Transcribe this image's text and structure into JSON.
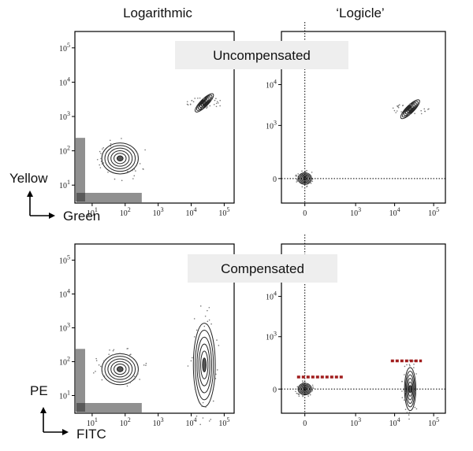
{
  "figure": {
    "columns": [
      {
        "title": "Logarithmic"
      },
      {
        "title": "‘Logicle’"
      }
    ],
    "rows": [
      {
        "banner": "Uncompensated",
        "x_axis_label": "Green",
        "y_axis_label": "Yellow"
      },
      {
        "banner": "Compensated",
        "x_axis_label": "FITC",
        "y_axis_label": "PE"
      }
    ],
    "log_ticks": [
      {
        "base": "10",
        "exp": "1",
        "value": 10
      },
      {
        "base": "10",
        "exp": "2",
        "value": 100
      },
      {
        "base": "10",
        "exp": "3",
        "value": 1000
      },
      {
        "base": "10",
        "exp": "4",
        "value": 10000
      },
      {
        "base": "10",
        "exp": "5",
        "value": 100000
      }
    ],
    "logicle_x_ticks": [
      {
        "label": "0",
        "value": 0
      },
      {
        "base": "10",
        "exp": "3",
        "value": 1000
      },
      {
        "base": "10",
        "exp": "4",
        "value": 10000
      },
      {
        "base": "10",
        "exp": "5",
        "value": 100000
      }
    ],
    "logicle_y_ticks": [
      {
        "label": "0",
        "value": 0
      },
      {
        "base": "10",
        "exp": "3",
        "value": 1000
      },
      {
        "base": "10",
        "exp": "4",
        "value": 10000
      }
    ],
    "colors": {
      "contour": "#222222",
      "banner_bg": "#eeeeee",
      "threshold": "#a11d1d",
      "grid_line": "#000000"
    }
  },
  "chart_data": [
    {
      "type": "scatter",
      "title": "Logarithmic",
      "subtitle": "Uncompensated",
      "xlabel": "Green",
      "ylabel": "Yellow",
      "xscale": "log",
      "yscale": "log",
      "xlim": [
        3,
        200000
      ],
      "ylim": [
        3,
        300000
      ],
      "clusters": [
        {
          "x": 70,
          "y": 60,
          "spread_decades": 0.55
        },
        {
          "x": 3,
          "y": 3,
          "note": "events piled on axes"
        },
        {
          "x": 25000,
          "y": 2500,
          "spread_decades": 0.25
        }
      ]
    },
    {
      "type": "scatter",
      "title": "‘Logicle’",
      "subtitle": "Uncompensated",
      "xlabel": "Green",
      "ylabel": "Yellow",
      "xscale": "logicle",
      "yscale": "logicle",
      "xlim": [
        -300,
        200000
      ],
      "ylim": [
        -300,
        200000
      ],
      "clusters": [
        {
          "x": 0,
          "y": 0,
          "spread_decades": 0.2
        },
        {
          "x": 25000,
          "y": 2500,
          "spread_decades": 0.25
        }
      ]
    },
    {
      "type": "scatter",
      "title": "Logarithmic",
      "subtitle": "Compensated",
      "xlabel": "FITC",
      "ylabel": "PE",
      "xscale": "log",
      "yscale": "log",
      "xlim": [
        3,
        200000
      ],
      "ylim": [
        3,
        300000
      ],
      "clusters": [
        {
          "x": 70,
          "y": 60,
          "spread_decades": 0.55
        },
        {
          "x": 3,
          "y": 3,
          "note": "events piled on axes"
        },
        {
          "x": 25000,
          "y": 80,
          "spread_decades": 0.6
        }
      ]
    },
    {
      "type": "scatter",
      "title": "‘Logicle’",
      "subtitle": "Compensated",
      "xlabel": "FITC",
      "ylabel": "PE",
      "xscale": "logicle",
      "yscale": "logicle",
      "xlim": [
        -300,
        200000
      ],
      "ylim": [
        -300,
        200000
      ],
      "clusters": [
        {
          "x": 0,
          "y": 0,
          "spread_decades": 0.2
        },
        {
          "x": 25000,
          "y": 0,
          "spread_decades": 0.3
        }
      ],
      "thresholds": [
        {
          "x_range": [
            -100,
            500
          ],
          "y": 150
        },
        {
          "x_range": [
            8000,
            50000
          ],
          "y": 350
        }
      ]
    }
  ]
}
